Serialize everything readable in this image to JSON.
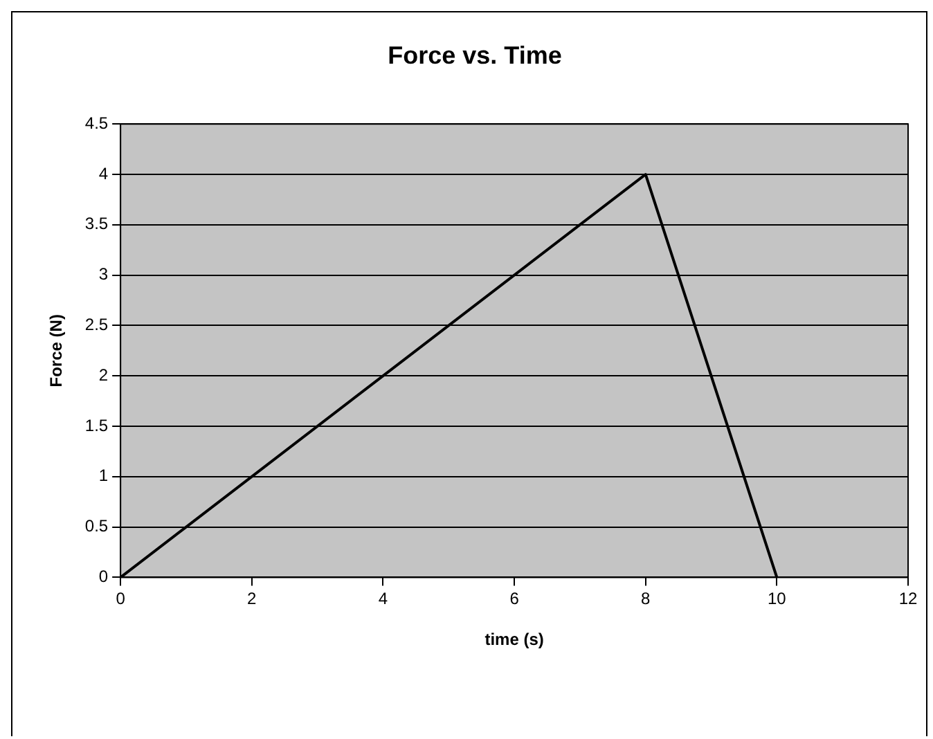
{
  "chart_data": {
    "type": "line",
    "title": "Force vs. Time",
    "xlabel": "time (s)",
    "ylabel": "Force (N)",
    "x": [
      0,
      8,
      10
    ],
    "series": [
      {
        "color": "#000000",
        "values": [
          0,
          4,
          0
        ]
      }
    ],
    "xlim": [
      0,
      12
    ],
    "xticks": [
      0,
      2,
      4,
      6,
      8,
      10,
      12
    ],
    "ylim": [
      0,
      4.5
    ],
    "yticks": [
      0,
      0.5,
      1,
      1.5,
      2,
      2.5,
      3,
      3.5,
      4,
      4.5
    ],
    "grid": "y",
    "legend": false,
    "marker": "none",
    "line_style": "solid"
  }
}
